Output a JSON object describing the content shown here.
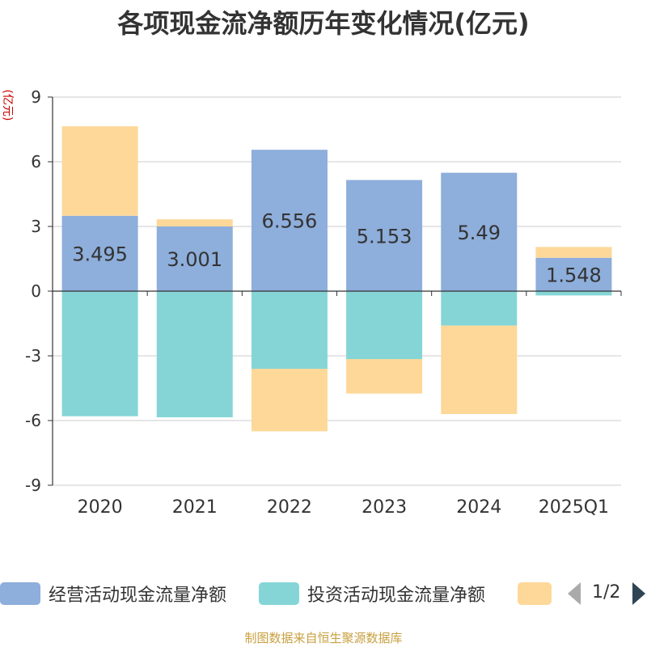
{
  "chart_data": {
    "type": "bar",
    "stacked": true,
    "title": "各项现金流净额历年变化情况(亿元)",
    "ylabel": "(亿元)",
    "ylim": [
      -9,
      9
    ],
    "yticks": [
      9,
      6,
      3,
      0,
      -3,
      -6,
      -9
    ],
    "categories": [
      "2020",
      "2021",
      "2022",
      "2023",
      "2024",
      "2025Q1"
    ],
    "series": [
      {
        "name": "经营活动现金流量净额",
        "color": "#8eaedb",
        "values": [
          3.495,
          3.001,
          6.556,
          5.153,
          5.49,
          1.548
        ]
      },
      {
        "name": "投资活动现金流量净额",
        "color": "#86d5d6",
        "values": [
          -5.8,
          -5.85,
          -3.6,
          -3.15,
          -1.6,
          -0.2
        ]
      },
      {
        "name": "",
        "color": "#fdd899",
        "values": [
          4.15,
          0.33,
          -2.9,
          -1.6,
          -4.1,
          0.5
        ]
      }
    ],
    "data_labels": [
      "3.495",
      "3.001",
      "6.556",
      "5.153",
      "5.49",
      "1.548"
    ]
  },
  "legend": {
    "items": [
      {
        "label": "经营活动现金流量净额",
        "color": "#8eaedb"
      },
      {
        "label": "投资活动现金流量净额",
        "color": "#86d5d6"
      },
      {
        "label": "",
        "color": "#fdd899"
      }
    ],
    "page": "1/2"
  },
  "footer": "制图数据来自恒生聚源数据库"
}
